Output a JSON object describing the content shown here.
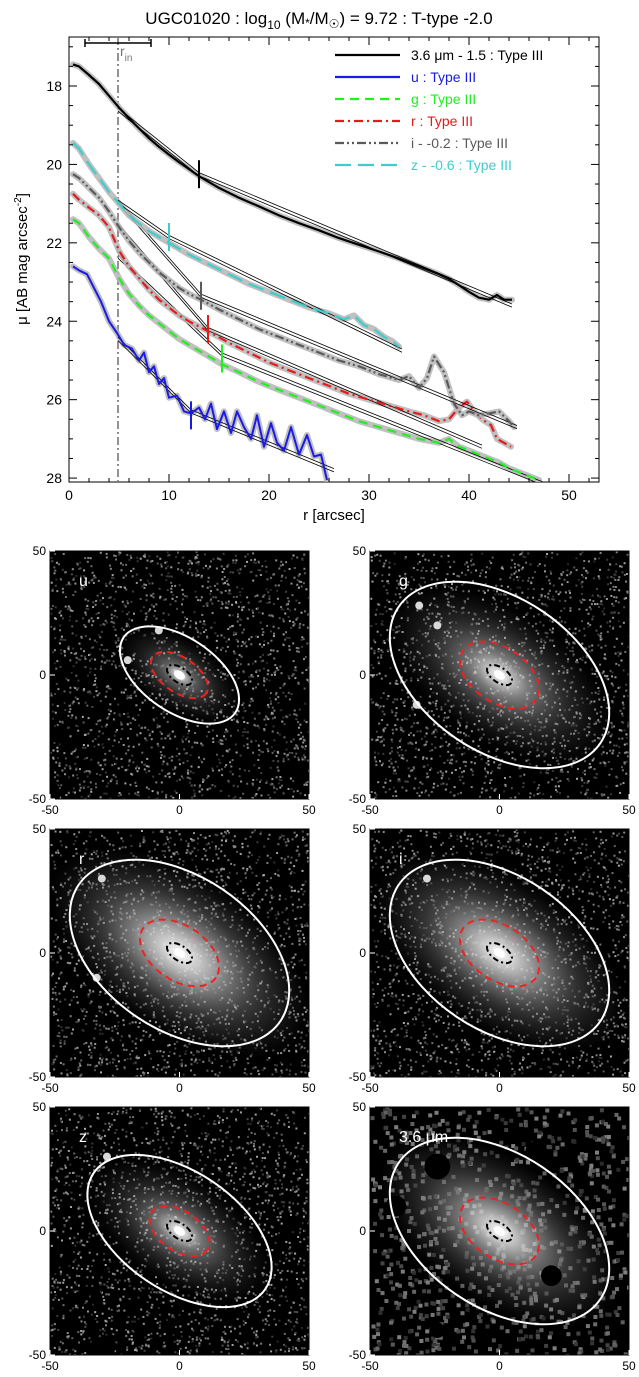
{
  "title_parts": {
    "galaxy": "UGC01020 : log",
    "sub10": "10",
    "mass": " (M",
    "star": "*",
    "msun": "/M",
    "sun": "☉",
    "rest": ") = 9.72 : T-type -2.0"
  },
  "profile_chart": {
    "type": "line",
    "xlabel": "r [arcsec]",
    "ylabel_main": "μ [AB mag arcsec",
    "ylabel_sup": "-2",
    "ylabel_end": "]",
    "xlim": [
      0,
      53
    ],
    "ylim": [
      28.1,
      16.75
    ],
    "y_inverted": true,
    "xticks": [
      0,
      10,
      20,
      30,
      40,
      50
    ],
    "yticks": [
      18,
      20,
      22,
      24,
      26,
      28
    ],
    "r_in": 4.9,
    "r_in_label_main": "r",
    "r_in_label_sub": "in",
    "scale_bar": [
      1.6,
      8.2
    ],
    "legend_position": "top-right",
    "legend": [
      {
        "label": "3.6 μm - 1.5 : Type III",
        "color": "#000000",
        "dash": "solid"
      },
      {
        "label": "u : Type III",
        "color": "#1a1ae6",
        "dash": "solid"
      },
      {
        "label": "g : Type III",
        "color": "#22ee22",
        "dash": "dashed"
      },
      {
        "label": "r : Type III",
        "color": "#e61a1a",
        "dash": "dashdot"
      },
      {
        "label": "i - -0.2 : Type III",
        "color": "#5a5a5a",
        "dash": "dashdotdot"
      },
      {
        "label": "z - -0.6 : Type III",
        "color": "#40cccc",
        "dash": "longdash"
      }
    ],
    "series": [
      {
        "name": "3.6 μm - 1.5",
        "color": "#000000",
        "dash": "solid",
        "width": 2.2,
        "break_r": 13.0,
        "break_mu": 20.25,
        "break_color": "#000000",
        "fit": [
          [
            4.9,
            18.6,
            13.0,
            20.25
          ],
          [
            13.0,
            20.25,
            44.3,
            23.6
          ]
        ],
        "points": [
          [
            0.4,
            17.45
          ],
          [
            1,
            17.5
          ],
          [
            2,
            17.72
          ],
          [
            3,
            17.95
          ],
          [
            4,
            18.25
          ],
          [
            5,
            18.55
          ],
          [
            6,
            18.82
          ],
          [
            7,
            19.08
          ],
          [
            8,
            19.33
          ],
          [
            9,
            19.55
          ],
          [
            10,
            19.75
          ],
          [
            11,
            19.94
          ],
          [
            12,
            20.12
          ],
          [
            13,
            20.3
          ],
          [
            15,
            20.6
          ],
          [
            17,
            20.85
          ],
          [
            19,
            21.07
          ],
          [
            21,
            21.3
          ],
          [
            23,
            21.5
          ],
          [
            25,
            21.68
          ],
          [
            27,
            21.88
          ],
          [
            29,
            22.05
          ],
          [
            31,
            22.22
          ],
          [
            33,
            22.4
          ],
          [
            35,
            22.6
          ],
          [
            37,
            22.8
          ],
          [
            38,
            22.92
          ],
          [
            39,
            23.08
          ],
          [
            40,
            23.25
          ],
          [
            41,
            23.4
          ],
          [
            42,
            23.45
          ],
          [
            42.8,
            23.33
          ],
          [
            43.5,
            23.45
          ],
          [
            44.3,
            23.45
          ]
        ]
      },
      {
        "name": "u",
        "color": "#1a1ae6",
        "dash": "solid",
        "width": 2.0,
        "break_r": 12.2,
        "break_mu": 26.4,
        "break_color": "#1a1ae6",
        "fit": [
          [
            4.9,
            24.45,
            12.2,
            26.3
          ],
          [
            12.2,
            26.3,
            26.5,
            27.8
          ]
        ],
        "points": [
          [
            0.4,
            22.6
          ],
          [
            1,
            22.7
          ],
          [
            1.8,
            22.8
          ],
          [
            2.5,
            23.15
          ],
          [
            3.2,
            23.5
          ],
          [
            4,
            24.0
          ],
          [
            4.8,
            24.3
          ],
          [
            5.5,
            24.6
          ],
          [
            6.3,
            24.7
          ],
          [
            7,
            25.0
          ],
          [
            7.5,
            24.8
          ],
          [
            8,
            25.3
          ],
          [
            8.5,
            25.15
          ],
          [
            9,
            25.6
          ],
          [
            9.5,
            25.45
          ],
          [
            10,
            25.95
          ],
          [
            10.8,
            25.9
          ],
          [
            11.5,
            26.3
          ],
          [
            12.2,
            26.35
          ],
          [
            13,
            26.2
          ],
          [
            13.6,
            26.5
          ],
          [
            14.2,
            26.1
          ],
          [
            14.8,
            26.75
          ],
          [
            15.5,
            26.3
          ],
          [
            16.2,
            26.85
          ],
          [
            16.8,
            26.3
          ],
          [
            17.5,
            26.7
          ],
          [
            18.2,
            27.0
          ],
          [
            18.8,
            26.4
          ],
          [
            19.5,
            27.2
          ],
          [
            20.2,
            26.6
          ],
          [
            20.8,
            27.1
          ],
          [
            21.5,
            27.3
          ],
          [
            22.2,
            26.7
          ],
          [
            23,
            27.4
          ],
          [
            23.8,
            26.9
          ],
          [
            24.5,
            27.45
          ],
          [
            25.2,
            27.4
          ],
          [
            25.8,
            28.05
          ]
        ]
      },
      {
        "name": "g",
        "color": "#22ee22",
        "dash": "dashed",
        "width": 2.2,
        "break_r": 15.3,
        "break_mu": 24.95,
        "break_color": "#22ee22",
        "fit": [
          [
            4.9,
            22.35,
            15.3,
            24.85
          ],
          [
            15.3,
            24.85,
            47.5,
            28.15
          ]
        ],
        "points": [
          [
            0.4,
            21.4
          ],
          [
            1,
            21.5
          ],
          [
            2,
            21.85
          ],
          [
            3,
            22.15
          ],
          [
            4,
            22.4
          ],
          [
            5,
            22.9
          ],
          [
            6,
            23.3
          ],
          [
            7,
            23.6
          ],
          [
            8,
            23.85
          ],
          [
            9,
            24.05
          ],
          [
            10,
            24.25
          ],
          [
            11,
            24.45
          ],
          [
            12,
            24.6
          ],
          [
            13,
            24.75
          ],
          [
            14,
            24.9
          ],
          [
            15.3,
            25.1
          ],
          [
            17,
            25.3
          ],
          [
            19,
            25.55
          ],
          [
            21,
            25.75
          ],
          [
            23,
            25.95
          ],
          [
            25,
            26.15
          ],
          [
            27,
            26.35
          ],
          [
            29,
            26.55
          ],
          [
            31,
            26.7
          ],
          [
            33,
            26.85
          ],
          [
            35,
            27.0
          ],
          [
            37,
            27.1
          ],
          [
            38,
            27.0
          ],
          [
            39,
            27.2
          ],
          [
            40,
            27.3
          ],
          [
            41,
            27.4
          ],
          [
            42,
            27.5
          ],
          [
            43,
            27.6
          ],
          [
            44,
            27.75
          ],
          [
            45,
            27.85
          ],
          [
            46,
            27.95
          ],
          [
            47,
            28.05
          ]
        ]
      },
      {
        "name": "r",
        "color": "#e61a1a",
        "dash": "dashdot",
        "width": 2.2,
        "break_r": 13.9,
        "break_mu": 24.2,
        "break_color": "#e61a1a",
        "fit": [
          [
            4.9,
            21.55,
            13.9,
            24.2
          ],
          [
            13.9,
            24.2,
            41.3,
            27.2
          ]
        ],
        "points": [
          [
            0.4,
            20.75
          ],
          [
            1,
            20.9
          ],
          [
            2,
            21.1
          ],
          [
            3,
            21.3
          ],
          [
            4,
            21.6
          ],
          [
            5,
            22.2
          ],
          [
            6,
            22.6
          ],
          [
            7,
            22.9
          ],
          [
            8,
            23.2
          ],
          [
            9,
            23.45
          ],
          [
            10,
            23.65
          ],
          [
            11,
            23.85
          ],
          [
            12,
            24.0
          ],
          [
            13.9,
            24.25
          ],
          [
            16,
            24.55
          ],
          [
            18,
            24.8
          ],
          [
            20,
            25.05
          ],
          [
            22,
            25.25
          ],
          [
            24,
            25.45
          ],
          [
            26,
            25.65
          ],
          [
            28,
            25.85
          ],
          [
            30,
            26.0
          ],
          [
            32,
            26.15
          ],
          [
            34,
            26.3
          ],
          [
            35.5,
            26.4
          ],
          [
            37,
            26.55
          ],
          [
            38,
            26.5
          ],
          [
            39,
            26.2
          ],
          [
            39.8,
            26.05
          ],
          [
            40.5,
            26.3
          ],
          [
            41.3,
            26.5
          ],
          [
            42.2,
            26.65
          ],
          [
            42.8,
            27.0
          ],
          [
            43.5,
            27.1
          ],
          [
            44.2,
            27.2
          ]
        ]
      },
      {
        "name": "i - -0.2",
        "color": "#5a5a5a",
        "dash": "dashdotdot",
        "width": 2.2,
        "break_r": 13.2,
        "break_mu": 23.35,
        "break_color": "#5a5a5a",
        "fit": [
          [
            4.9,
            20.95,
            13.2,
            23.35
          ],
          [
            13.2,
            23.35,
            44.8,
            26.7
          ]
        ],
        "points": [
          [
            0.4,
            20.25
          ],
          [
            1,
            20.35
          ],
          [
            2,
            20.6
          ],
          [
            3,
            20.85
          ],
          [
            4,
            21.2
          ],
          [
            5,
            21.6
          ],
          [
            6,
            21.95
          ],
          [
            7,
            22.25
          ],
          [
            8,
            22.5
          ],
          [
            9,
            22.75
          ],
          [
            10,
            22.95
          ],
          [
            11,
            23.15
          ],
          [
            12,
            23.3
          ],
          [
            13.2,
            23.45
          ],
          [
            15,
            23.7
          ],
          [
            17,
            23.95
          ],
          [
            19,
            24.2
          ],
          [
            21,
            24.4
          ],
          [
            23,
            24.6
          ],
          [
            25,
            24.8
          ],
          [
            27,
            25.0
          ],
          [
            29,
            25.15
          ],
          [
            31,
            25.35
          ],
          [
            33,
            25.5
          ],
          [
            34,
            25.4
          ],
          [
            35,
            25.7
          ],
          [
            35.8,
            25.45
          ],
          [
            36.5,
            24.9
          ],
          [
            37.5,
            25.3
          ],
          [
            38.5,
            26.1
          ],
          [
            39.3,
            26.4
          ],
          [
            40,
            26.3
          ],
          [
            41,
            26.4
          ],
          [
            42,
            26.35
          ],
          [
            43,
            26.3
          ],
          [
            44,
            26.55
          ],
          [
            44.5,
            26.7
          ]
        ]
      },
      {
        "name": "z - -0.6",
        "color": "#40cccc",
        "dash": "longdash",
        "width": 2.2,
        "break_r": 10.0,
        "break_mu": 21.85,
        "break_color": "#40cccc",
        "fit": [
          [
            4.9,
            20.95,
            10.0,
            21.85
          ],
          [
            10.0,
            21.85,
            33.3,
            24.75
          ]
        ],
        "points": [
          [
            0.4,
            19.45
          ],
          [
            1,
            19.6
          ],
          [
            2,
            20.0
          ],
          [
            3,
            20.35
          ],
          [
            4,
            20.7
          ],
          [
            5,
            21.0
          ],
          [
            6,
            21.3
          ],
          [
            7,
            21.5
          ],
          [
            8,
            21.7
          ],
          [
            9,
            21.85
          ],
          [
            10,
            22.0
          ],
          [
            12,
            22.3
          ],
          [
            14,
            22.55
          ],
          [
            16,
            22.8
          ],
          [
            18,
            23.05
          ],
          [
            20,
            23.25
          ],
          [
            22,
            23.45
          ],
          [
            24,
            23.65
          ],
          [
            26,
            23.8
          ],
          [
            27.5,
            23.95
          ],
          [
            28.5,
            23.85
          ],
          [
            29.5,
            24.1
          ],
          [
            30.5,
            24.2
          ],
          [
            31.5,
            24.4
          ],
          [
            32.3,
            24.5
          ],
          [
            33,
            24.65
          ]
        ]
      }
    ]
  },
  "image_panels": {
    "xlim": [
      -50,
      50
    ],
    "ylim": [
      -50,
      50
    ],
    "ticks": [
      -50,
      0,
      50
    ],
    "panels": [
      {
        "label": "u",
        "outer_a": 26,
        "outer_b": 15,
        "inner_a": 12.5,
        "inner_b": 7,
        "core_a": 5.5,
        "core_b": 3,
        "pa": -34,
        "brightness": 0.45,
        "halo": 12,
        "stars": [
          [
            -20,
            6
          ],
          [
            -8,
            18
          ]
        ],
        "dark": [
          [
            -52,
            -48,
            6
          ]
        ]
      },
      {
        "label": "g",
        "outer_a": 47,
        "outer_b": 31,
        "inner_a": 17,
        "inner_b": 11,
        "core_a": 5.5,
        "core_b": 3,
        "pa": -34,
        "brightness": 0.6,
        "halo": 22,
        "stars": [
          [
            -31,
            28
          ],
          [
            -24,
            20
          ],
          [
            -32,
            -12
          ]
        ],
        "dark": []
      },
      {
        "label": "r",
        "outer_a": 47,
        "outer_b": 31,
        "inner_a": 17,
        "inner_b": 11,
        "core_a": 5.5,
        "core_b": 3,
        "pa": -34,
        "brightness": 0.8,
        "halo": 26,
        "stars": [
          [
            -30,
            30
          ],
          [
            -32,
            -10
          ]
        ],
        "dark": []
      },
      {
        "label": "i",
        "outer_a": 47,
        "outer_b": 31,
        "inner_a": 17,
        "inner_b": 11,
        "core_a": 5.5,
        "core_b": 3,
        "pa": -34,
        "brightness": 0.75,
        "halo": 25,
        "stars": [
          [
            -28,
            30
          ]
        ],
        "dark": []
      },
      {
        "label": "z",
        "outer_a": 40,
        "outer_b": 24,
        "inner_a": 13,
        "inner_b": 8,
        "core_a": 5.5,
        "core_b": 3,
        "pa": -34,
        "brightness": 0.55,
        "halo": 18,
        "stars": [
          [
            -28,
            30
          ]
        ],
        "dark": [
          [
            -30,
            -48,
            5
          ]
        ]
      },
      {
        "label": "3.6 μm",
        "outer_a": 47,
        "outer_b": 31,
        "inner_a": 17,
        "inner_b": 11,
        "core_a": 5.5,
        "core_b": 3,
        "pa": -34,
        "brightness": 0.7,
        "halo": 24,
        "stars": [],
        "dark": [
          [
            -24,
            26,
            5
          ],
          [
            -40,
            10,
            4
          ],
          [
            14,
            32,
            4
          ],
          [
            20,
            -18,
            4
          ],
          [
            -24,
            -40,
            3
          ]
        ]
      }
    ]
  }
}
